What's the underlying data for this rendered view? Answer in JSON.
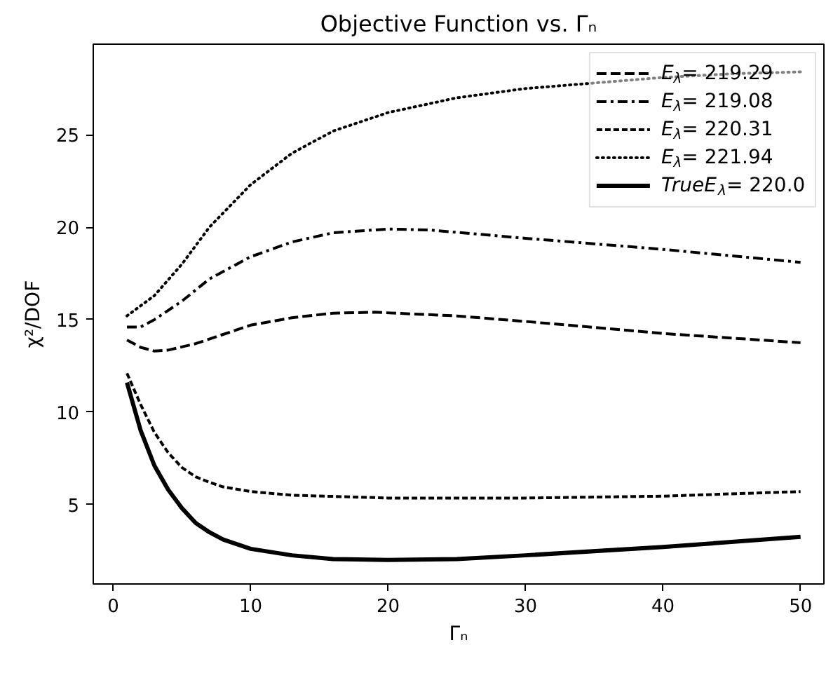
{
  "chart_data": {
    "type": "line",
    "title": "Objective Function vs. Γₙ",
    "xlabel": "Γₙ",
    "ylabel": "χ²/DOF",
    "xlim": [
      -1.45,
      51.7
    ],
    "ylim": [
      0.7,
      29.9
    ],
    "xticks": [
      0,
      10,
      20,
      30,
      40,
      50
    ],
    "yticks": [
      5,
      10,
      15,
      20,
      25
    ],
    "grid": false,
    "legend": "top right",
    "marker": "none",
    "series": [
      {
        "name": "E$_{λ}$= 219.29",
        "color": "#000000",
        "line_style": "dashed",
        "x": [
          1,
          2,
          3,
          4,
          6,
          8,
          10,
          13,
          16,
          19,
          25,
          30,
          40,
          50
        ],
        "values": [
          13.9,
          13.5,
          13.3,
          13.35,
          13.7,
          14.2,
          14.7,
          15.1,
          15.35,
          15.4,
          15.2,
          14.9,
          14.25,
          13.75
        ]
      },
      {
        "name": "E$_{λ}$= 219.08",
        "color": "#000000",
        "line_style": "dashdot",
        "x": [
          1,
          2,
          3,
          5,
          7,
          10,
          13,
          16,
          20,
          23,
          30,
          40,
          50
        ],
        "values": [
          14.6,
          14.6,
          15.0,
          16.0,
          17.2,
          18.4,
          19.2,
          19.7,
          19.9,
          19.85,
          19.4,
          18.8,
          18.1
        ]
      },
      {
        "name": "E$_{λ}$= 220.31",
        "color": "#000000",
        "line_style": "dashed_short",
        "x": [
          1,
          2,
          3,
          4,
          5,
          6,
          7,
          8,
          10,
          13,
          20,
          30,
          40,
          50
        ],
        "values": [
          12.1,
          10.4,
          8.9,
          7.8,
          7.0,
          6.5,
          6.2,
          5.95,
          5.7,
          5.5,
          5.35,
          5.35,
          5.45,
          5.7
        ]
      },
      {
        "name": "E$_{λ}$= 221.94",
        "color": "#000000",
        "line_style": "dotted",
        "x": [
          1,
          3,
          5,
          7,
          10,
          13,
          16,
          20,
          25,
          30,
          35,
          40,
          45,
          50
        ],
        "values": [
          15.2,
          16.3,
          18.0,
          20.0,
          22.3,
          24.0,
          25.2,
          26.2,
          27.0,
          27.5,
          27.8,
          28.1,
          28.3,
          28.4
        ]
      },
      {
        "name": "TrueE$_{λ}$= 220.0",
        "color": "#000000",
        "line_style": "solid",
        "x": [
          1,
          2,
          3,
          4,
          5,
          6,
          7,
          8,
          10,
          13,
          16,
          20,
          25,
          30,
          40,
          50
        ],
        "values": [
          11.6,
          9.0,
          7.1,
          5.8,
          4.8,
          4.0,
          3.5,
          3.1,
          2.6,
          2.25,
          2.05,
          2.0,
          2.05,
          2.25,
          2.7,
          3.25
        ]
      }
    ]
  }
}
